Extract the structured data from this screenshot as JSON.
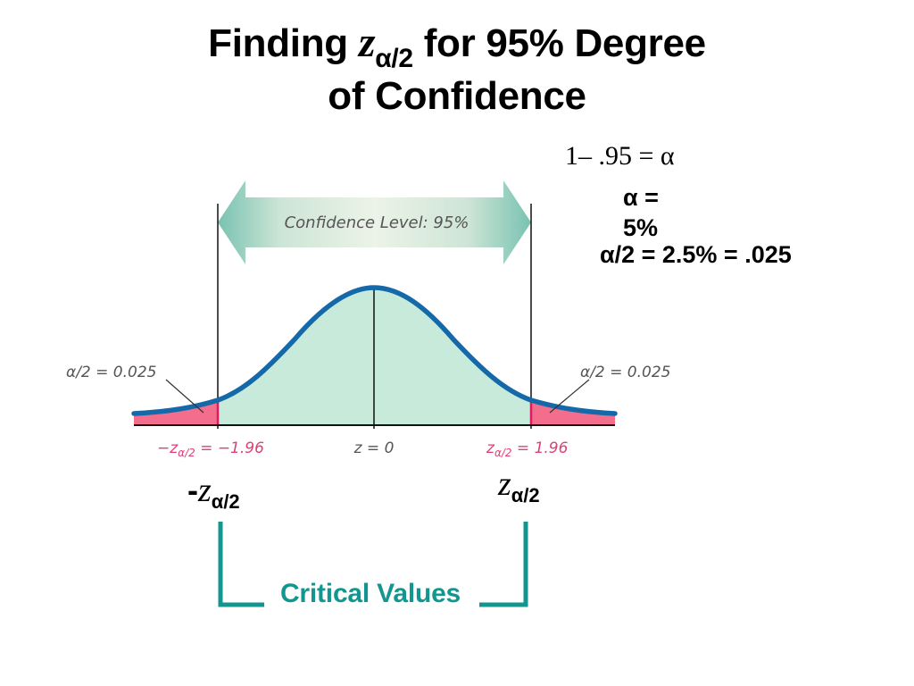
{
  "title": {
    "line1_prefix": "Finding ",
    "z_symbol": "z",
    "z_subscript": "α/2",
    "line1_suffix": " for 95% Degree",
    "line2": "of Confidence"
  },
  "equations": {
    "eq1": "1– .95 = α",
    "eq2_line1": "α =",
    "eq2_line2": "5%",
    "eq3": "α/2 = 2.5% = .025"
  },
  "diagram": {
    "confidence_label": "Confidence Level: 95%",
    "left_tail_label": "α/2 = 0.025",
    "right_tail_label": "α/2 = 0.025",
    "left_crit_prefix": "−z",
    "left_crit_sub": "α/2",
    "left_crit_suffix": " = −1.96",
    "center_label": "z = 0",
    "right_crit_prefix": "z",
    "right_crit_sub": "α/2",
    "right_crit_suffix": " = 1.96"
  },
  "critical": {
    "left_prefix": "-",
    "left_symbol": "z",
    "left_sub": "α/2",
    "right_symbol": "z",
    "right_sub": "α/2",
    "label": "Critical Values"
  },
  "colors": {
    "curve": "#1569a8",
    "center_fill": "#c7eadb",
    "tail_fill": "#f36e8c",
    "pink_text": "#e0407a",
    "teal": "#13968f",
    "arrow_light": "#e6f1e7",
    "arrow_dark": "#7bc3b2"
  }
}
